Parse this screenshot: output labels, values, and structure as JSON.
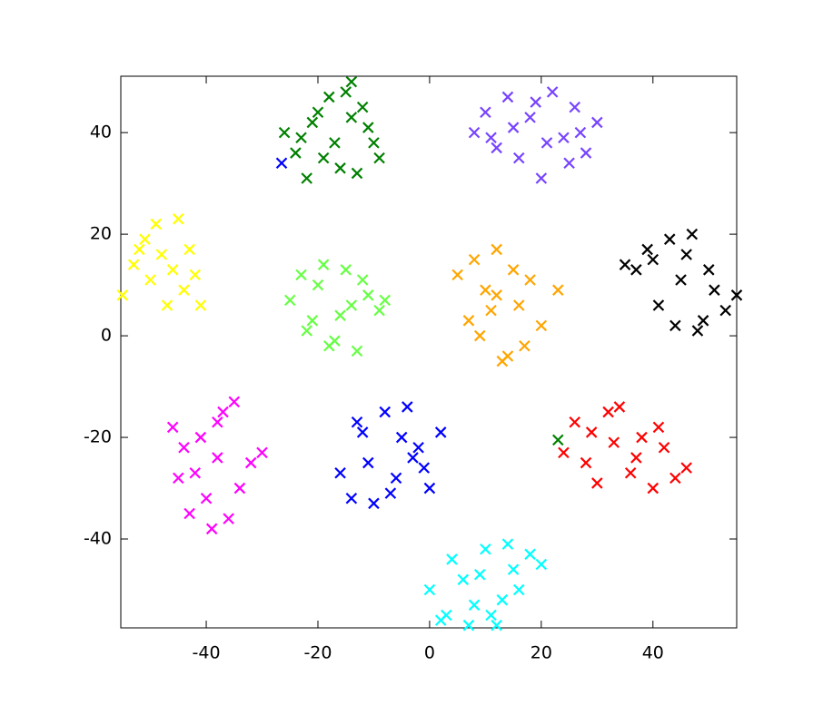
{
  "chart_data": {
    "type": "scatter",
    "xlim": [
      -55.3,
      55
    ],
    "ylim": [
      -57.5,
      51.1
    ],
    "xticks": [
      -40,
      -20,
      0,
      20,
      40
    ],
    "yticks": [
      -40,
      -20,
      0,
      20,
      40
    ],
    "marker": "x",
    "series": [
      {
        "color": "#008000",
        "x": [
          -26,
          -24,
          -22,
          -20,
          -18,
          -16,
          -14,
          -12,
          -10,
          -9,
          -21,
          -17,
          -13,
          -15,
          -19,
          -23,
          -11,
          -14,
          23
        ],
        "values": [
          40,
          36,
          31,
          44,
          47,
          33,
          50,
          45,
          38,
          35,
          42,
          38,
          32,
          48,
          35,
          39,
          41,
          43,
          -20.5
        ]
      },
      {
        "color": "#7744ff",
        "x": [
          8,
          10,
          12,
          14,
          16,
          18,
          20,
          22,
          24,
          26,
          28,
          30,
          21,
          15,
          25,
          19,
          11,
          27
        ],
        "values": [
          40,
          44,
          37,
          47,
          35,
          43,
          31,
          48,
          39,
          45,
          36,
          42,
          38,
          41,
          34,
          46,
          39,
          40
        ]
      },
      {
        "color": "#ffff00",
        "x": [
          -55,
          -53,
          -51,
          -49,
          -47,
          -45,
          -43,
          -41,
          -50,
          -46,
          -44,
          -52,
          -48,
          -42
        ],
        "values": [
          8,
          14,
          19,
          22,
          6,
          23,
          17,
          6,
          11,
          13,
          9,
          17,
          16,
          12
        ]
      },
      {
        "color": "#66ff44",
        "x": [
          -25,
          -23,
          -21,
          -19,
          -17,
          -15,
          -13,
          -11,
          -9,
          -8,
          -20,
          -16,
          -12,
          -18,
          -22,
          -14
        ],
        "values": [
          7,
          12,
          3,
          14,
          -1,
          13,
          -3,
          8,
          5,
          7,
          10,
          4,
          11,
          -2,
          1,
          6
        ]
      },
      {
        "color": "#ffa500",
        "x": [
          5,
          7,
          8,
          10,
          12,
          14,
          16,
          18,
          20,
          23,
          13,
          11,
          15,
          9,
          17,
          12
        ],
        "values": [
          12,
          3,
          15,
          9,
          17,
          -4,
          6,
          11,
          2,
          9,
          -5,
          5,
          13,
          0,
          -2,
          8
        ]
      },
      {
        "color": "#000000",
        "x": [
          35,
          37,
          39,
          41,
          43,
          45,
          47,
          49,
          51,
          53,
          55,
          44,
          40,
          48,
          46,
          50
        ],
        "values": [
          14,
          13,
          17,
          6,
          19,
          11,
          20,
          3,
          9,
          5,
          8,
          2,
          15,
          1,
          16,
          13
        ]
      },
      {
        "color": "#ff00ff",
        "x": [
          -46,
          -45,
          -43,
          -41,
          -39,
          -37,
          -35,
          -34,
          -30,
          -32,
          -40,
          -38,
          -44,
          -36,
          -42,
          -38
        ],
        "values": [
          -18,
          -28,
          -35,
          -20,
          -38,
          -15,
          -13,
          -30,
          -23,
          -25,
          -32,
          -24,
          -22,
          -36,
          -27,
          -17
        ]
      },
      {
        "color": "#0000ff",
        "x": [
          -16,
          -14,
          -12,
          -10,
          -8,
          -6,
          -4,
          -2,
          0,
          2,
          -11,
          -5,
          -1,
          -13,
          -7,
          -3,
          -26.5
        ],
        "values": [
          -27,
          -32,
          -19,
          -33,
          -15,
          -28,
          -14,
          -22,
          -30,
          -19,
          -25,
          -20,
          -26,
          -17,
          -31,
          -24,
          34
        ]
      },
      {
        "color": "#ff0000",
        "x": [
          24,
          26,
          28,
          30,
          32,
          34,
          36,
          38,
          40,
          42,
          44,
          46,
          33,
          37,
          29,
          41
        ],
        "values": [
          -23,
          -17,
          -25,
          -29,
          -15,
          -14,
          -27,
          -20,
          -30,
          -22,
          -28,
          -26,
          -21,
          -24,
          -19,
          -18
        ]
      },
      {
        "color": "#00ffff",
        "x": [
          0,
          2,
          4,
          6,
          8,
          10,
          12,
          14,
          16,
          18,
          20,
          3,
          9,
          13,
          7,
          15,
          11
        ],
        "values": [
          -50,
          -56,
          -44,
          -48,
          -53,
          -42,
          -57,
          -41,
          -50,
          -43,
          -45,
          -55,
          -47,
          -52,
          -57,
          -46,
          -55
        ]
      }
    ]
  }
}
